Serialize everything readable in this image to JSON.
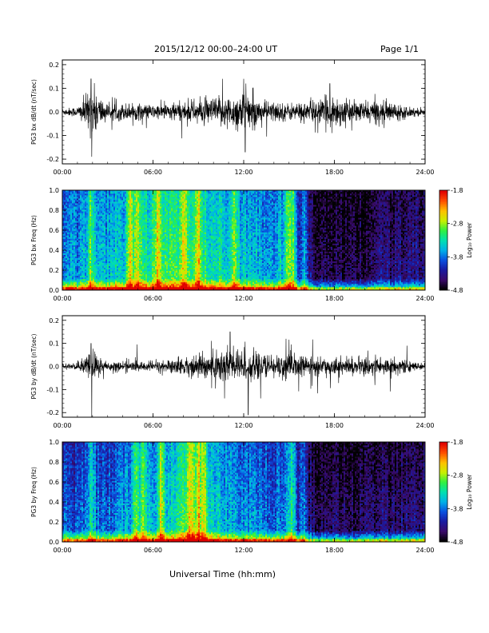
{
  "header": {
    "title": "2015/12/12  00:00–24:00 UT",
    "page": "Page 1/1"
  },
  "footer": {
    "xlabel": "Universal Time (hh:mm)"
  },
  "colors": {
    "trace": "#000000",
    "colormap": [
      "#000000",
      "#3a0a6a",
      "#1a1aa0",
      "#0a50e0",
      "#00b0e8",
      "#00e0b0",
      "#30f040",
      "#c8f000",
      "#ffc000",
      "#ff5000",
      "#e00000"
    ]
  },
  "chart_data": [
    {
      "type": "line",
      "ylabel": "PG3 bx dB/dt (nT/sec)",
      "x_ticks": [
        "00:00",
        "06:00",
        "12:00",
        "18:00",
        "24:00"
      ],
      "y_ticks": [
        "0.2",
        "0.1",
        "0.0",
        "-0.1",
        "-0.2"
      ],
      "xlim": [
        0,
        24
      ],
      "ylim": [
        -0.22,
        0.22
      ],
      "activity_profile_hours": [
        0,
        1,
        2,
        3,
        4,
        5,
        6,
        7,
        8,
        9,
        10,
        11,
        12,
        13,
        14,
        15,
        16,
        17,
        18,
        19,
        20,
        21,
        22,
        23,
        24
      ],
      "amplitude_envelope": [
        0.02,
        0.03,
        0.15,
        0.04,
        0.05,
        0.05,
        0.04,
        0.05,
        0.06,
        0.07,
        0.08,
        0.09,
        0.12,
        0.07,
        0.06,
        0.05,
        0.06,
        0.07,
        0.1,
        0.06,
        0.06,
        0.07,
        0.05,
        0.03,
        0.02
      ],
      "peaks": [
        {
          "x": 1.9,
          "y": 0.14
        },
        {
          "x": 1.95,
          "y": -0.19
        },
        {
          "x": 10.6,
          "y": 0.14
        },
        {
          "x": 12.0,
          "y": 0.14
        },
        {
          "x": 12.1,
          "y": -0.17
        },
        {
          "x": 17.7,
          "y": 0.12
        }
      ]
    },
    {
      "type": "heatmap",
      "ylabel": "PG3 bx Freq (Hz)",
      "colorbar_label": "Log₁₀ Power",
      "colorbar_ticks": [
        "-1.8",
        "-2.8",
        "-3.8",
        "-4.8"
      ],
      "x_ticks": [
        "00:00",
        "06:00",
        "12:00",
        "18:00",
        "24:00"
      ],
      "y_ticks": [
        "1.0",
        "0.8",
        "0.6",
        "0.4",
        "0.2",
        "0.0"
      ],
      "xlim": [
        0,
        24
      ],
      "ylim": [
        0,
        1.0
      ],
      "clim": [
        -4.8,
        -1.8
      ],
      "background_power_by_hour": [
        -3.6,
        -3.6,
        -3.4,
        -3.5,
        -3.3,
        -3.2,
        -3.1,
        -3.0,
        -3.0,
        -3.1,
        -3.2,
        -3.3,
        -3.4,
        -3.5,
        -3.6,
        -3.3,
        -4.3,
        -4.5,
        -4.5,
        -4.5,
        -4.5,
        -4.4,
        -4.4,
        -4.3,
        -4.3
      ],
      "bright_columns_hours": [
        1.9,
        4.5,
        5.0,
        6.3,
        8.0,
        9.0,
        11.4,
        15.0,
        15.3,
        16.0
      ]
    },
    {
      "type": "line",
      "ylabel": "PG3 by dB/dt (nT/sec)",
      "x_ticks": [
        "00:00",
        "06:00",
        "12:00",
        "18:00",
        "24:00"
      ],
      "y_ticks": [
        "0.2",
        "0.1",
        "0.0",
        "-0.1",
        "-0.2"
      ],
      "xlim": [
        0,
        24
      ],
      "ylim": [
        -0.22,
        0.22
      ],
      "activity_profile_hours": [
        0,
        1,
        2,
        3,
        4,
        5,
        6,
        7,
        8,
        9,
        10,
        11,
        12,
        13,
        14,
        15,
        16,
        17,
        18,
        19,
        20,
        21,
        22,
        23,
        24
      ],
      "amplitude_envelope": [
        0.015,
        0.02,
        0.1,
        0.03,
        0.03,
        0.03,
        0.03,
        0.04,
        0.05,
        0.07,
        0.1,
        0.12,
        0.1,
        0.07,
        0.07,
        0.08,
        0.06,
        0.05,
        0.05,
        0.05,
        0.05,
        0.06,
        0.05,
        0.03,
        0.015
      ],
      "peaks": [
        {
          "x": 1.9,
          "y": 0.1
        },
        {
          "x": 1.95,
          "y": -0.22
        },
        {
          "x": 11.1,
          "y": 0.15
        },
        {
          "x": 12.3,
          "y": -0.21
        },
        {
          "x": 14.8,
          "y": 0.12
        },
        {
          "x": 22.8,
          "y": 0.09
        }
      ]
    },
    {
      "type": "heatmap",
      "ylabel": "PG3 by Freq (Hz)",
      "colorbar_label": "Log₁₀ Power",
      "colorbar_ticks": [
        "-1.8",
        "-2.8",
        "-3.8",
        "-4.8"
      ],
      "x_ticks": [
        "00:00",
        "06:00",
        "12:00",
        "18:00",
        "24:00"
      ],
      "y_ticks": [
        "1.0",
        "0.8",
        "0.6",
        "0.4",
        "0.2",
        "0.0"
      ],
      "xlim": [
        0,
        24
      ],
      "ylim": [
        0,
        1.0
      ],
      "clim": [
        -4.8,
        -1.8
      ],
      "background_power_by_hour": [
        -3.9,
        -3.9,
        -3.7,
        -3.8,
        -3.6,
        -3.5,
        -3.4,
        -3.3,
        -3.1,
        -3.0,
        -3.4,
        -3.5,
        -3.6,
        -3.7,
        -3.8,
        -3.6,
        -4.3,
        -4.5,
        -4.5,
        -4.5,
        -4.5,
        -4.4,
        -4.4,
        -4.4,
        -4.3
      ],
      "bright_columns_hours": [
        1.9,
        4.9,
        5.3,
        6.5,
        8.5,
        9.0,
        9.3,
        15.2,
        16.0
      ]
    }
  ]
}
